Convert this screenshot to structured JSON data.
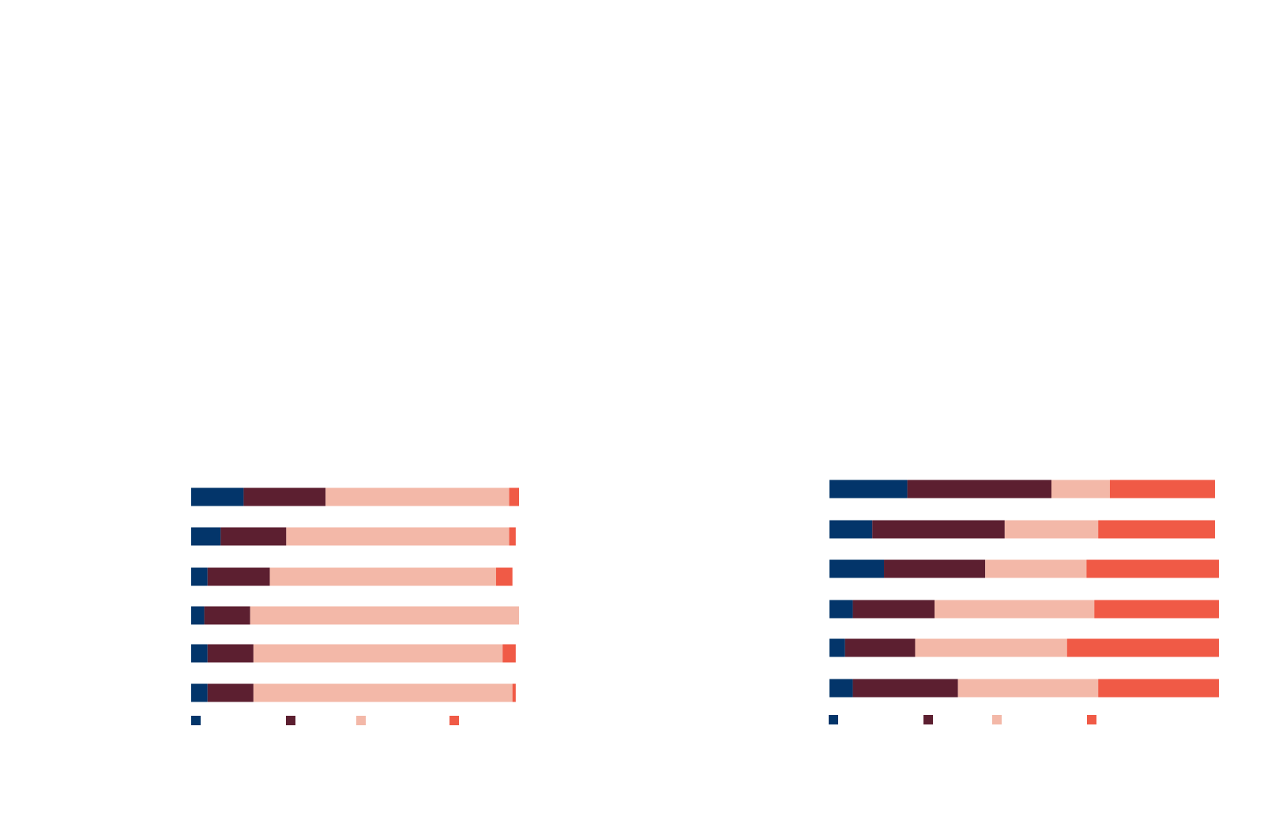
{
  "chart_data": [
    {
      "type": "stacked-bar-horizontal",
      "xlim": [
        0,
        100
      ],
      "series": [
        {
          "color": "#03356a",
          "values": [
            16,
            9,
            5,
            4,
            5,
            5
          ]
        },
        {
          "color": "#5c1f30",
          "values": [
            25,
            20,
            19,
            14,
            14,
            14
          ]
        },
        {
          "color": "#f3b8a8",
          "values": [
            56,
            68,
            69,
            82,
            76,
            79
          ]
        },
        {
          "color": "#f05a46",
          "values": [
            3,
            2,
            5,
            0,
            4,
            1
          ]
        }
      ]
    },
    {
      "type": "stacked-bar-horizontal",
      "xlim": [
        0,
        100
      ],
      "series": [
        {
          "color": "#03356a",
          "values": [
            20,
            11,
            14,
            6,
            4,
            6
          ]
        },
        {
          "color": "#5c1f30",
          "values": [
            37,
            34,
            26,
            21,
            18,
            27
          ]
        },
        {
          "color": "#f3b8a8",
          "values": [
            15,
            24,
            26,
            41,
            39,
            36
          ]
        },
        {
          "color": "#f05a46",
          "values": [
            27,
            30,
            34,
            32,
            39,
            31
          ]
        }
      ]
    }
  ]
}
